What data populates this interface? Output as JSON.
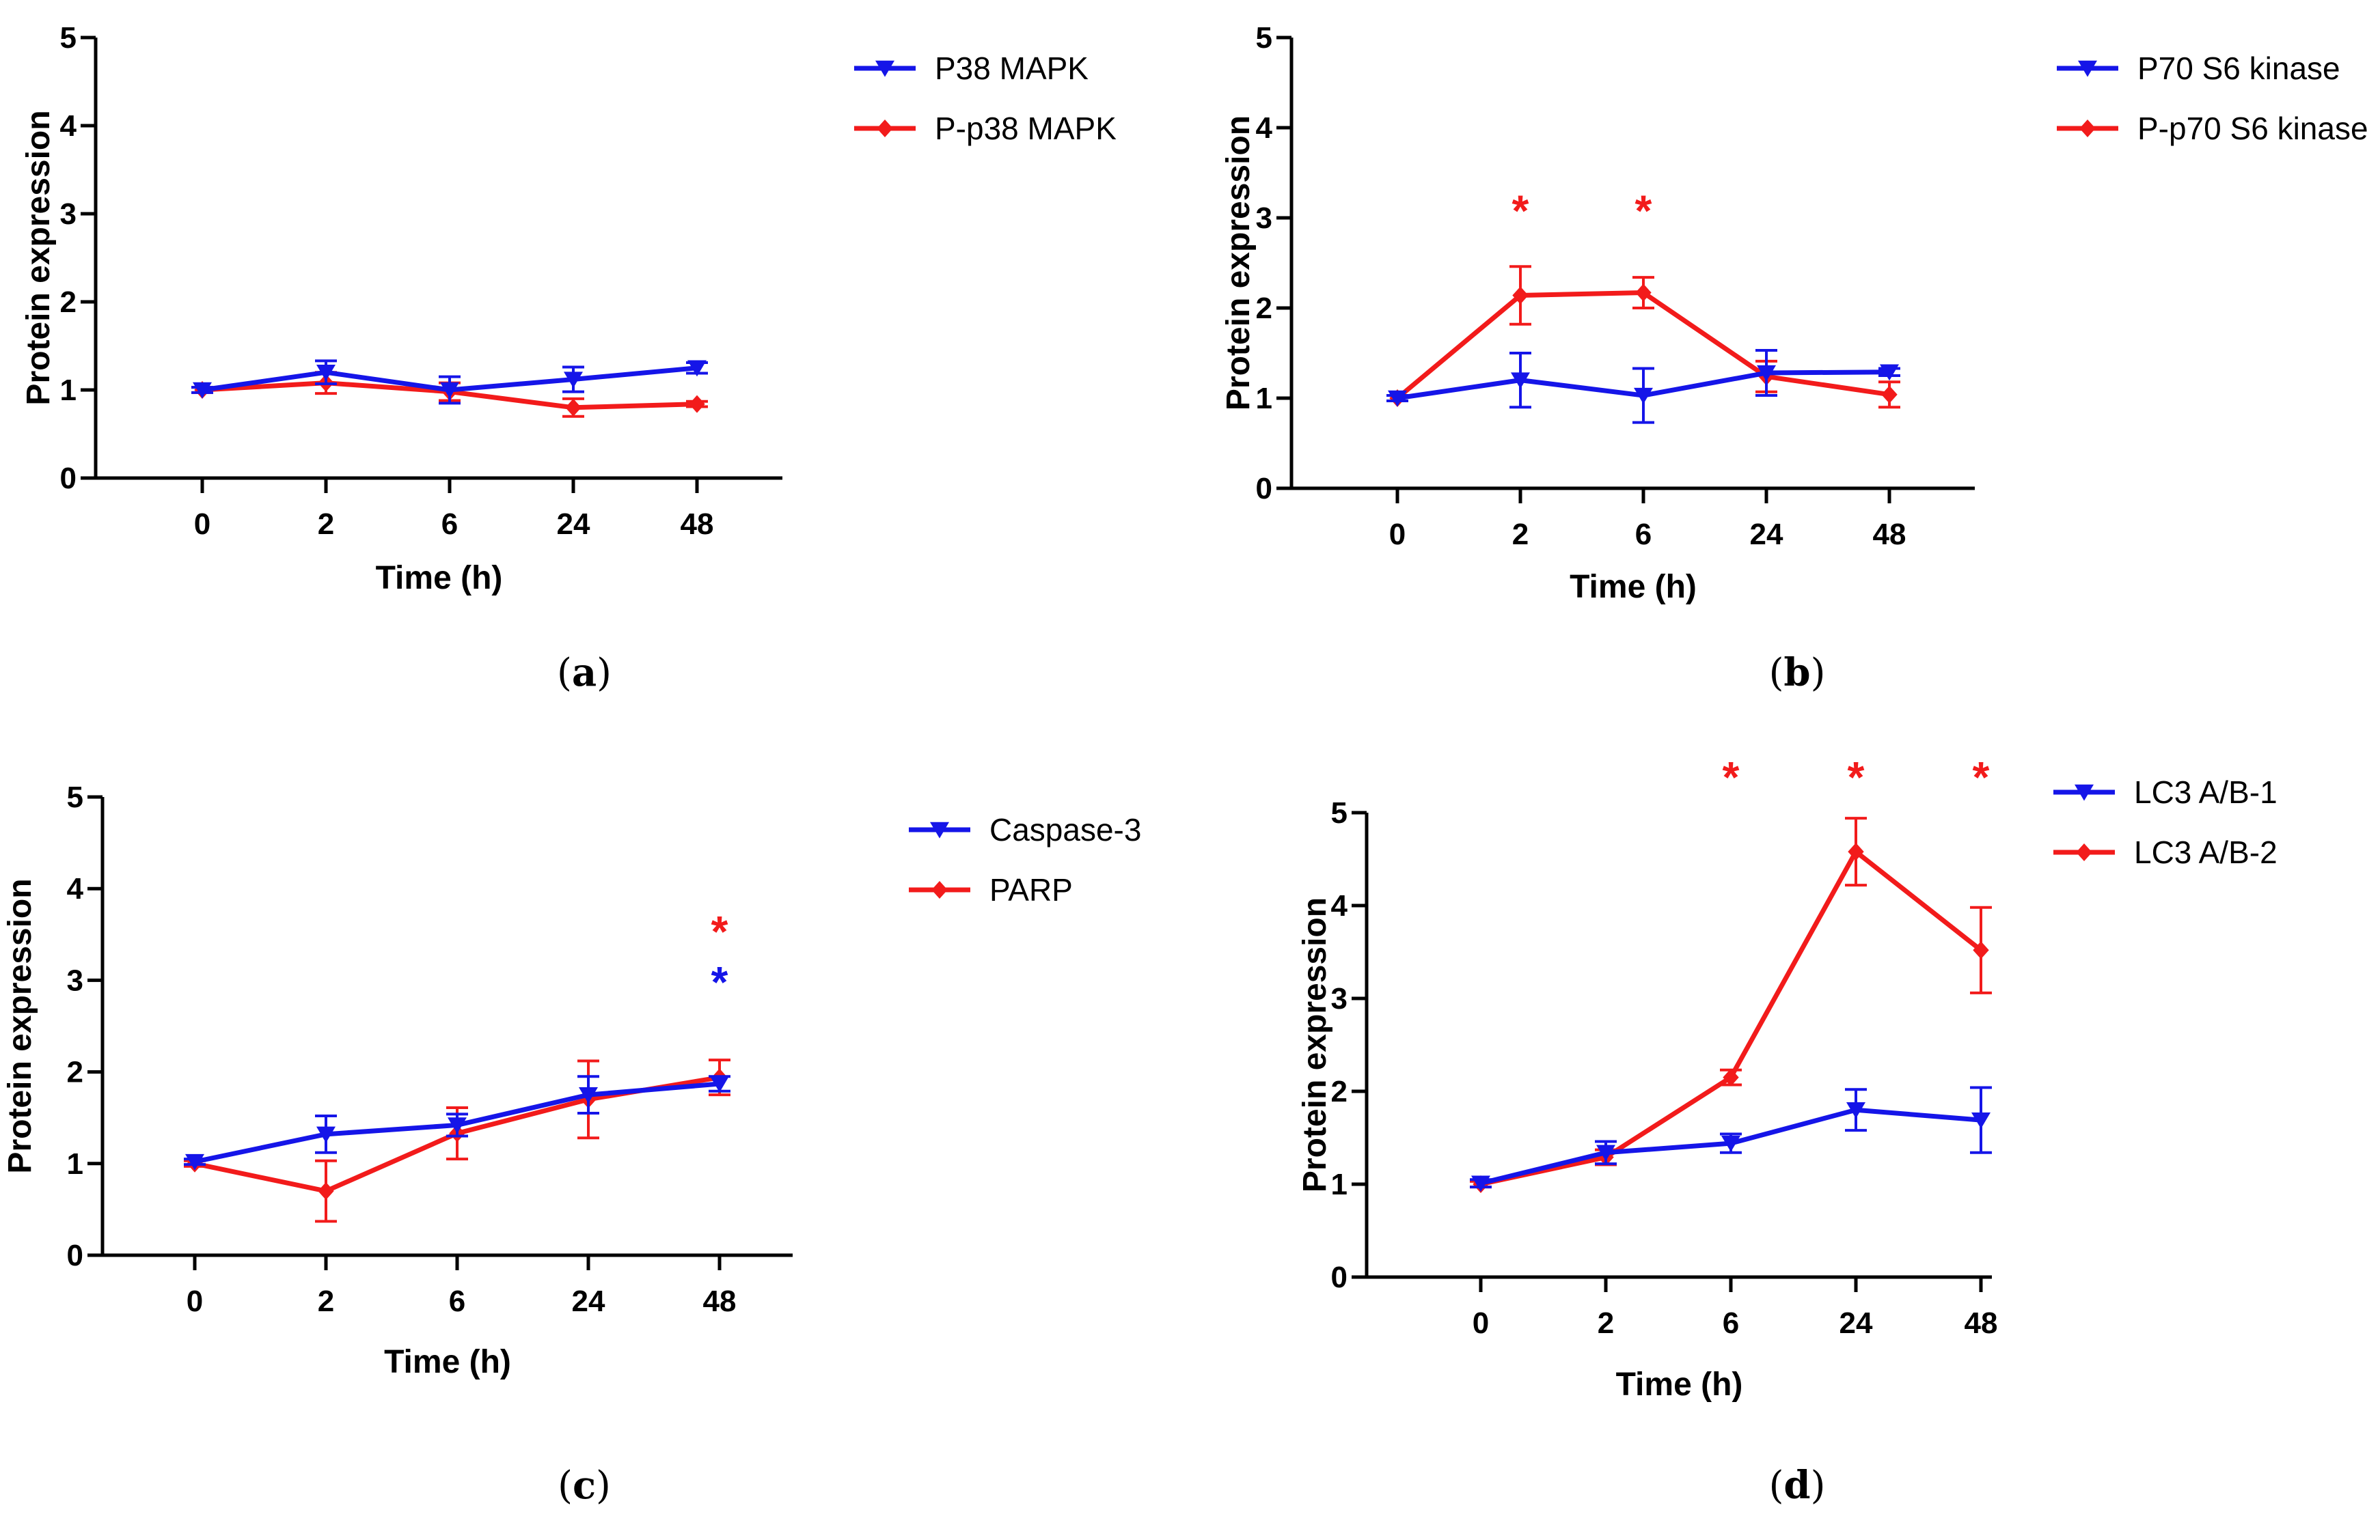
{
  "colors": {
    "blue": "#1515e8",
    "red": "#f21b1b",
    "axis": "#000000"
  },
  "chart_data": [
    {
      "id": "a",
      "type": "line",
      "panel_label": "a",
      "title": "",
      "xlabel": "Time (h)",
      "ylabel": "Protein expression",
      "categories": [
        "0",
        "2",
        "6",
        "24",
        "48"
      ],
      "ylim": [
        0,
        5
      ],
      "yticks": [
        "0",
        "1",
        "2",
        "3",
        "4",
        "5"
      ],
      "legend_position": "right",
      "series": [
        {
          "name": "P38 MAPK",
          "color": "#1515e8",
          "marker": "triangle-down",
          "values": [
            1.0,
            1.2,
            1.0,
            1.12,
            1.25
          ],
          "errors": [
            0.03,
            0.13,
            0.15,
            0.14,
            0.06
          ]
        },
        {
          "name": "P-p38 MAPK",
          "color": "#f21b1b",
          "marker": "diamond",
          "values": [
            1.0,
            1.08,
            0.98,
            0.8,
            0.84
          ],
          "errors": [
            0.03,
            0.12,
            0.1,
            0.1,
            0.03
          ]
        }
      ],
      "significance": []
    },
    {
      "id": "b",
      "type": "line",
      "panel_label": "b",
      "title": "",
      "xlabel": "Time (h)",
      "ylabel": "Protein expression",
      "categories": [
        "0",
        "2",
        "6",
        "24",
        "48"
      ],
      "ylim": [
        0,
        5
      ],
      "yticks": [
        "0",
        "1",
        "2",
        "3",
        "4",
        "5"
      ],
      "legend_position": "right",
      "series": [
        {
          "name": "P70 S6 kinase",
          "color": "#1515e8",
          "marker": "triangle-down",
          "values": [
            1.0,
            1.2,
            1.03,
            1.28,
            1.29
          ],
          "errors": [
            0.03,
            0.3,
            0.3,
            0.25,
            0.04
          ]
        },
        {
          "name": "P-p70 S6 kinase",
          "color": "#f21b1b",
          "marker": "diamond",
          "values": [
            1.0,
            2.14,
            2.17,
            1.24,
            1.04
          ],
          "errors": [
            0.03,
            0.32,
            0.17,
            0.17,
            0.14
          ]
        }
      ],
      "significance": [
        {
          "category": "2",
          "level": 3.2,
          "symbol": "*",
          "color": "#f21b1b"
        },
        {
          "category": "6",
          "level": 3.2,
          "symbol": "*",
          "color": "#f21b1b"
        }
      ]
    },
    {
      "id": "c",
      "type": "line",
      "panel_label": "c",
      "title": "",
      "xlabel": "Time (h)",
      "ylabel": "Protein expression",
      "categories": [
        "0",
        "2",
        "6",
        "24",
        "48"
      ],
      "ylim": [
        0,
        5
      ],
      "yticks": [
        "0",
        "1",
        "2",
        "3",
        "4",
        "5"
      ],
      "legend_position": "right",
      "series": [
        {
          "name": "Caspase-3",
          "color": "#1515e8",
          "marker": "triangle-down",
          "values": [
            1.02,
            1.32,
            1.42,
            1.75,
            1.87
          ],
          "errors": [
            0.03,
            0.2,
            0.12,
            0.2,
            0.08
          ]
        },
        {
          "name": "PARP",
          "color": "#f21b1b",
          "marker": "diamond",
          "values": [
            1.0,
            0.7,
            1.33,
            1.7,
            1.94
          ],
          "errors": [
            0.03,
            0.33,
            0.28,
            0.42,
            0.19
          ]
        }
      ],
      "significance": [
        {
          "category": "48",
          "level": 3.65,
          "symbol": "*",
          "color": "#f21b1b"
        },
        {
          "category": "48",
          "level": 3.1,
          "symbol": "*",
          "color": "#1515e8"
        }
      ]
    },
    {
      "id": "d",
      "type": "line",
      "panel_label": "d",
      "title": "",
      "xlabel": "Time (h)",
      "ylabel": "Protein expression",
      "categories": [
        "0",
        "2",
        "6",
        "24",
        "48"
      ],
      "ylim": [
        0,
        5
      ],
      "yticks": [
        "0",
        "1",
        "2",
        "3",
        "4",
        "5"
      ],
      "legend_position": "right",
      "series": [
        {
          "name": "LC3 A/B-1",
          "color": "#1515e8",
          "marker": "triangle-down",
          "values": [
            1.01,
            1.34,
            1.44,
            1.8,
            1.69
          ],
          "errors": [
            0.04,
            0.12,
            0.1,
            0.22,
            0.35
          ]
        },
        {
          "name": "LC3 A/B-2",
          "color": "#f21b1b",
          "marker": "diamond",
          "values": [
            1.0,
            1.29,
            2.15,
            4.58,
            3.52
          ],
          "errors": [
            0.03,
            0.08,
            0.08,
            0.36,
            0.46
          ]
        }
      ],
      "significance": [
        {
          "category": "6",
          "level": 5.5,
          "symbol": "*",
          "color": "#f21b1b"
        },
        {
          "category": "24",
          "level": 5.5,
          "symbol": "*",
          "color": "#f21b1b"
        },
        {
          "category": "48",
          "level": 5.5,
          "symbol": "*",
          "color": "#f21b1b"
        }
      ]
    }
  ]
}
